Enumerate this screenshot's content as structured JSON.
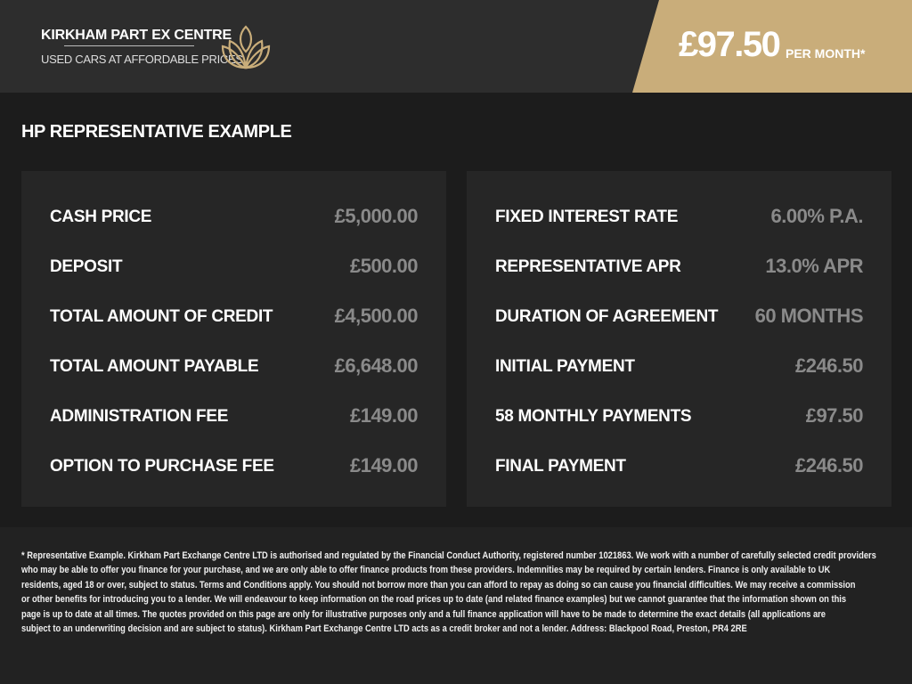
{
  "header": {
    "logo_title": "KIRKHAM PART EX CENTRE",
    "logo_subtitle": "USED CARS AT AFFORDABLE PRICES",
    "logo_icon": "lotus-icon",
    "price": "£97.50",
    "price_suffix": "PER MONTH*"
  },
  "section_title": "HP REPRESENTATIVE EXAMPLE",
  "left_panel": [
    {
      "label": "CASH PRICE",
      "value": "£5,000.00"
    },
    {
      "label": "DEPOSIT",
      "value": "£500.00"
    },
    {
      "label": "TOTAL AMOUNT OF CREDIT",
      "value": "£4,500.00"
    },
    {
      "label": "TOTAL AMOUNT PAYABLE",
      "value": "£6,648.00"
    },
    {
      "label": "ADMINISTRATION FEE",
      "value": "£149.00"
    },
    {
      "label": "OPTION TO PURCHASE FEE",
      "value": "£149.00"
    }
  ],
  "right_panel": [
    {
      "label": "FIXED INTEREST RATE",
      "value": "6.00% P.A."
    },
    {
      "label": "REPRESENTATIVE APR",
      "value": "13.0% APR"
    },
    {
      "label": "DURATION OF AGREEMENT",
      "value": "60 MONTHS"
    },
    {
      "label": "INITIAL PAYMENT",
      "value": "£246.50"
    },
    {
      "label": "58 MONTHLY PAYMENTS",
      "value": "£97.50"
    },
    {
      "label": "FINAL PAYMENT",
      "value": "£246.50"
    }
  ],
  "disclaimer_lines": [
    "* Representative Example. Kirkham Part Exchange Centre LTD is authorised and regulated by the Financial Conduct Authority, registered number 1021863. We work with a number of carefully selected credit providers",
    "who may be able to offer you finance for your purchase, and we are only able to offer finance products from these providers. Indemnities may be required by certain lenders. Finance is only available to UK",
    "residents, aged 18 or over, subject to status. Terms and Conditions apply. You should not borrow more than you can afford to repay as doing so can cause you financial difficulties. We may receive a commission",
    "or other benefits for introducing you to a lender. We will endeavour to keep information on the road prices up to date (and related finance examples) but we cannot guarantee that the information shown on this",
    "page is up to date at all times. The quotes provided on this page are only for illustrative purposes only and a full finance application will have to be made to determine the exact details (all applications are",
    "subject to an underwriting decision and are subject to status). Kirkham Part Exchange Centre LTD acts as a credit broker and not a lender. Address: Blackpool Road, Preston, PR4 2RE"
  ],
  "colors": {
    "gold": "#c9ad7a",
    "header_bg": "#2d2d2d",
    "panel_bg": "#262626",
    "value_grey": "#8a8a8a"
  }
}
